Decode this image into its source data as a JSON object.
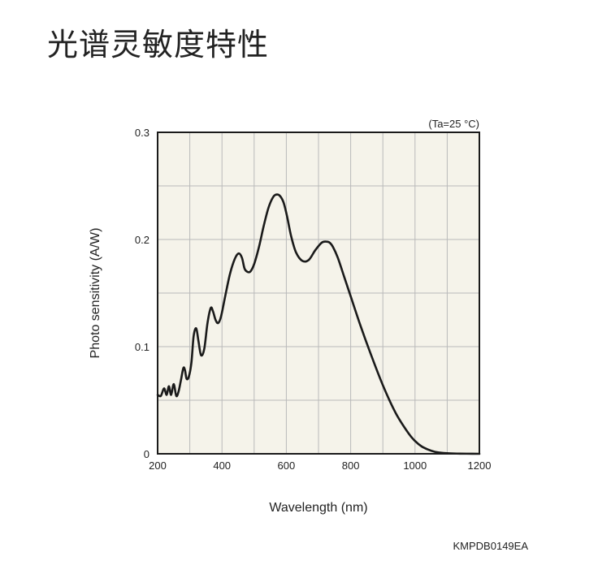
{
  "page_title": "光谱灵敏度特性",
  "condition_label": "(Ta=25 °C)",
  "figure_code": "KMPDB0149EA",
  "colors": {
    "plot_background": "#f5f3ea",
    "grid": "#b9b9b9",
    "curve": "#1a1a1a",
    "frame": "#1a1a1a"
  },
  "chart_data": {
    "type": "line",
    "title": "",
    "xlabel": "Wavelength (nm)",
    "ylabel": "Photo sensitivity (A/W)",
    "xlim": [
      200,
      1200
    ],
    "ylim": [
      0,
      0.3
    ],
    "xticks": [
      200,
      400,
      600,
      800,
      1000,
      1200
    ],
    "xtick_labels": [
      "200",
      "400",
      "600",
      "800",
      "1000",
      "1200"
    ],
    "yticks": [
      0,
      0.1,
      0.2,
      0.3
    ],
    "ytick_labels": [
      "0",
      "0.1",
      "0.2",
      "0.3"
    ],
    "x_minor_grid_step": 100,
    "y_minor_grid_step": 0.05,
    "grid": true,
    "series": [
      {
        "x": [
          200,
          210,
          220,
          228,
          235,
          242,
          250,
          258,
          265,
          272,
          280,
          285,
          290,
          297,
          305,
          312,
          320,
          327,
          335,
          345,
          355,
          365,
          372,
          380,
          388,
          397,
          410,
          425,
          440,
          452,
          462,
          470,
          478,
          488,
          500,
          515,
          530,
          545,
          560,
          572,
          582,
          592,
          602,
          615,
          630,
          650,
          670,
          690,
          710,
          725,
          735,
          745,
          760,
          780,
          800,
          830,
          860,
          900,
          940,
          980,
          1000,
          1020,
          1040,
          1060,
          1080,
          1100,
          1130,
          1160,
          1200
        ],
        "y": [
          0.055,
          0.054,
          0.061,
          0.055,
          0.063,
          0.055,
          0.065,
          0.054,
          0.058,
          0.068,
          0.08,
          0.078,
          0.07,
          0.072,
          0.085,
          0.11,
          0.117,
          0.105,
          0.092,
          0.098,
          0.122,
          0.136,
          0.133,
          0.125,
          0.122,
          0.128,
          0.147,
          0.168,
          0.182,
          0.187,
          0.183,
          0.173,
          0.17,
          0.17,
          0.177,
          0.193,
          0.213,
          0.23,
          0.24,
          0.242,
          0.24,
          0.234,
          0.222,
          0.203,
          0.188,
          0.18,
          0.181,
          0.19,
          0.197,
          0.198,
          0.197,
          0.193,
          0.183,
          0.165,
          0.147,
          0.12,
          0.095,
          0.064,
          0.038,
          0.019,
          0.012,
          0.007,
          0.004,
          0.002,
          0.001,
          0.0005,
          0.0002,
          0.0001,
          0.0
        ]
      }
    ]
  }
}
